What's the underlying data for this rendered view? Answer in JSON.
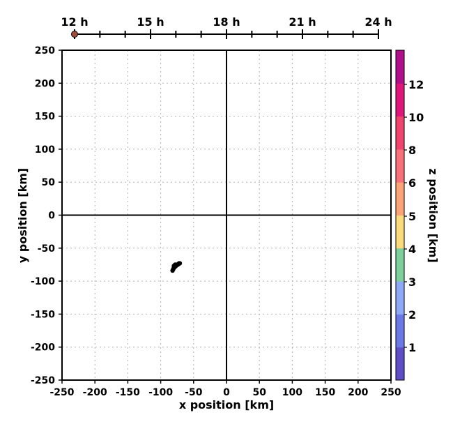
{
  "chart_data": {
    "type": "scatter",
    "title": "",
    "xlabel": "x position [km]",
    "ylabel": "y position [km]",
    "xlim": [
      -250,
      250
    ],
    "ylim": [
      -250,
      250
    ],
    "xticks": [
      -250,
      -200,
      -150,
      -100,
      -50,
      0,
      50,
      100,
      150,
      200,
      250
    ],
    "yticks": [
      -250,
      -200,
      -150,
      -100,
      -50,
      0,
      50,
      100,
      150,
      200,
      250
    ],
    "grid": true,
    "origin_lines": true,
    "mark_color": "#000000",
    "series": [
      {
        "x": [
          -82,
          -81,
          -80,
          -79,
          -78,
          -77,
          -76,
          -75,
          -74,
          -73,
          -72,
          -71,
          -80,
          -78
        ],
        "y": [
          -84,
          -82,
          -80,
          -79,
          -78,
          -77,
          -76,
          -75,
          -75,
          -74,
          -73,
          -73,
          -77,
          -75
        ]
      }
    ],
    "timeline": {
      "labels": [
        "12 h",
        "15 h",
        "18 h",
        "21 h",
        "24 h"
      ],
      "range_hours": [
        12,
        24
      ],
      "minor_step_hours": 1,
      "current_hours": 12,
      "marker_color": "#a04a3a"
    },
    "colorbar": {
      "label": "z position [km]",
      "ticks": [
        "1",
        "2",
        "3",
        "4",
        "5",
        "6",
        "8",
        "10",
        "12"
      ],
      "bands": [
        {
          "color": "#5e4fc9"
        },
        {
          "color": "#6b78e8"
        },
        {
          "color": "#8ea9f5"
        },
        {
          "color": "#7dcf9c"
        },
        {
          "color": "#fadb7e"
        },
        {
          "color": "#fba478"
        },
        {
          "color": "#f7707a"
        },
        {
          "color": "#f0446e"
        },
        {
          "color": "#e0177a"
        },
        {
          "color": "#b00e8a"
        }
      ]
    }
  }
}
